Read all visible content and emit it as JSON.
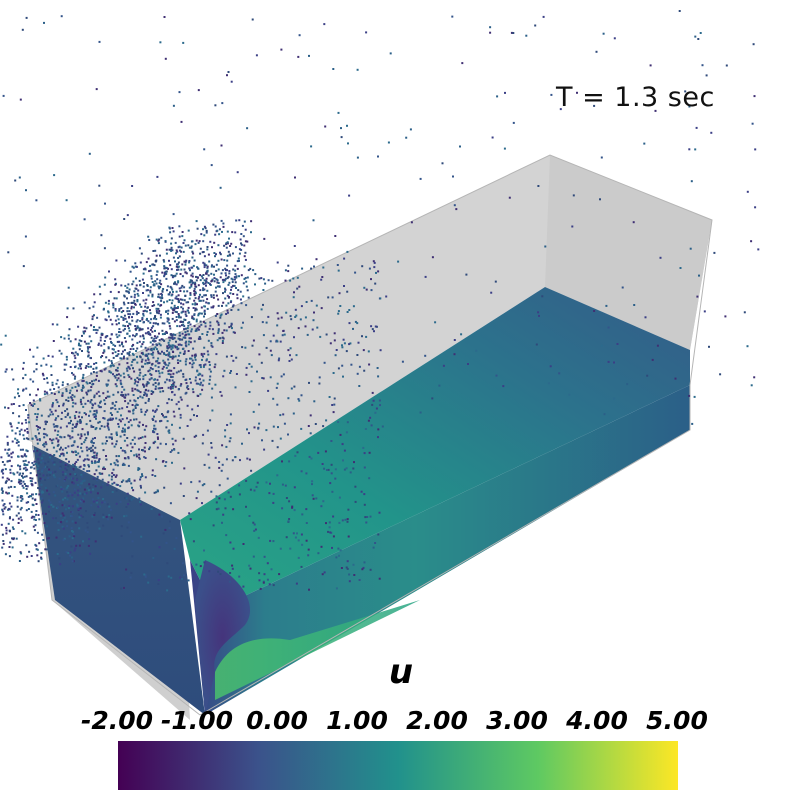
{
  "scene": {
    "time_label": "T = 1.3 sec",
    "background": "#ffffff",
    "domain_color": "#d3d3d3",
    "field_name": "u"
  },
  "colorbar": {
    "title": "u",
    "colormap": "viridis",
    "range": [
      -2.0,
      5.0
    ],
    "tick_labels": [
      "-2.00",
      "-1.00",
      "0.00",
      "1.00",
      "2.00",
      "3.00",
      "4.00",
      "5.00"
    ],
    "tick_values": [
      -2.0,
      -1.0,
      0.0,
      1.0,
      2.0,
      3.0,
      4.0,
      5.0
    ],
    "stops": [
      "#440154",
      "#3b528b",
      "#21918c",
      "#5ec962",
      "#fde725"
    ]
  }
}
